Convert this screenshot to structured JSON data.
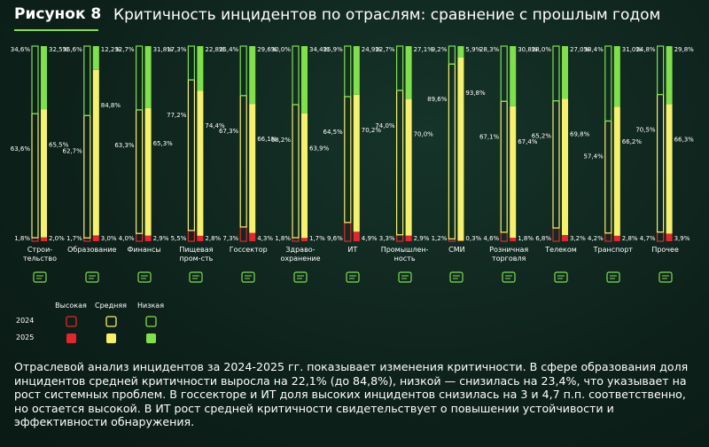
{
  "chart_data": {
    "type": "stacked_bar_pairs",
    "figure_label": "Рисунок 8",
    "title": "Критичность инцидентов по отраслям: сравнение с прошлым годом",
    "categories": [
      "Строи-\nтельство",
      "Образование",
      "Финансы",
      "Пищевая\nпром-сть",
      "Госсектор",
      "Здраво-\nохранение",
      "ИТ",
      "Промышлен-\nность",
      "СМИ",
      "Розничная\nторговля",
      "Телеком",
      "Транспорт",
      "Прочее"
    ],
    "years": [
      "2024",
      "2025"
    ],
    "ylim": [
      0,
      100
    ],
    "series": [
      {
        "name": "Высокая",
        "color": "#e3262d",
        "values": [
          [
            1.8,
            2.0
          ],
          [
            1.7,
            3.0
          ],
          [
            4.0,
            2.9
          ],
          [
            5.5,
            2.8
          ],
          [
            7.3,
            4.3
          ],
          [
            1.8,
            1.7
          ],
          [
            9.6,
            4.9
          ],
          [
            3.3,
            2.9
          ],
          [
            1.2,
            0.3
          ],
          [
            4.6,
            1.8
          ],
          [
            6.8,
            3.2
          ],
          [
            4.2,
            2.8
          ],
          [
            4.7,
            3.9
          ]
        ],
        "value_labels": [
          [
            "1,8%",
            "2,0%"
          ],
          [
            "1,7%",
            "3,0%"
          ],
          [
            "4,0%",
            "2,9%"
          ],
          [
            "5,5%",
            "2,8%"
          ],
          [
            "7,3%",
            "4,3%"
          ],
          [
            "1,8%",
            "1,7%"
          ],
          [
            "9,6%",
            "4,9%"
          ],
          [
            "3,3%",
            "2,9%"
          ],
          [
            "1,2%",
            "0,3%"
          ],
          [
            "4,6%",
            "1,8%"
          ],
          [
            "6,8%",
            "3,2%"
          ],
          [
            "4,2%",
            "2,8%"
          ],
          [
            "4,7%",
            "3,9%"
          ]
        ]
      },
      {
        "name": "Средняя",
        "color": "#f6f16c",
        "values": [
          [
            63.6,
            65.5
          ],
          [
            62.7,
            84.8
          ],
          [
            63.3,
            65.3
          ],
          [
            77.2,
            74.4
          ],
          [
            67.3,
            66.1
          ],
          [
            68.2,
            63.9
          ],
          [
            64.5,
            70.2
          ],
          [
            74.0,
            70.0
          ],
          [
            89.6,
            93.8
          ],
          [
            67.1,
            67.4
          ],
          [
            65.2,
            69.8
          ],
          [
            57.4,
            66.2
          ],
          [
            70.5,
            66.3
          ]
        ],
        "value_labels": [
          [
            "63,6%",
            "65,5%"
          ],
          [
            "62,7%",
            "84,8%"
          ],
          [
            "63,3%",
            "65,3%"
          ],
          [
            "77,2%",
            "74,4%"
          ],
          [
            "67,3%",
            "66,1%"
          ],
          [
            "68,2%",
            "63,9%"
          ],
          [
            "64,5%",
            "70,2%"
          ],
          [
            "74,0%",
            "70,0%"
          ],
          [
            "89,6%",
            "93,8%"
          ],
          [
            "67,1%",
            "67,4%"
          ],
          [
            "65,2%",
            "69,8%"
          ],
          [
            "57,4%",
            "66,2%"
          ],
          [
            "70,5%",
            "66,3%"
          ]
        ]
      },
      {
        "name": "Низкая",
        "color": "#7fe04b",
        "values": [
          [
            34.6,
            32.5
          ],
          [
            35.6,
            12.2
          ],
          [
            32.7,
            31.8
          ],
          [
            17.3,
            22.8
          ],
          [
            25.4,
            29.6
          ],
          [
            30.0,
            34.4
          ],
          [
            25.9,
            24.9
          ],
          [
            22.7,
            27.1
          ],
          [
            9.2,
            5.9
          ],
          [
            28.3,
            30.8
          ],
          [
            28.0,
            27.0
          ],
          [
            38.4,
            31.0
          ],
          [
            24.8,
            29.8
          ]
        ],
        "value_labels": [
          [
            "34,6%",
            "32,5%"
          ],
          [
            "35,6%",
            "12,2%"
          ],
          [
            "32,7%",
            "31,8%"
          ],
          [
            "17,3%",
            "22,8%"
          ],
          [
            "25,4%",
            "29,6%"
          ],
          [
            "30,0%",
            "34,4%"
          ],
          [
            "25,9%",
            "24,9%"
          ],
          [
            "22,7%",
            "27,1%"
          ],
          [
            "9,2%",
            "5,9%"
          ],
          [
            "28,3%",
            "30,8%"
          ],
          [
            "28,0%",
            "27,0%"
          ],
          [
            "38,4%",
            "31,0%"
          ],
          [
            "24,8%",
            "29,8%"
          ]
        ]
      }
    ],
    "note": "Отраслевой анализ инцидентов за 2024-2025 гг. показывает изменения критичности. В сфере образования доля инцидентов средней критичности выросла на 22,1% (до 84,8%), низкой — снизилась на 23,4%, что указывает на рост системных проблем. В госсекторе и ИТ доля высоких инцидентов снизилась на 3 и 4,7 п.п. соответственно, но остается высокой. В ИТ рост средней критичности свидетельствует о повышении устойчивости и эффективности обнаружения."
  }
}
